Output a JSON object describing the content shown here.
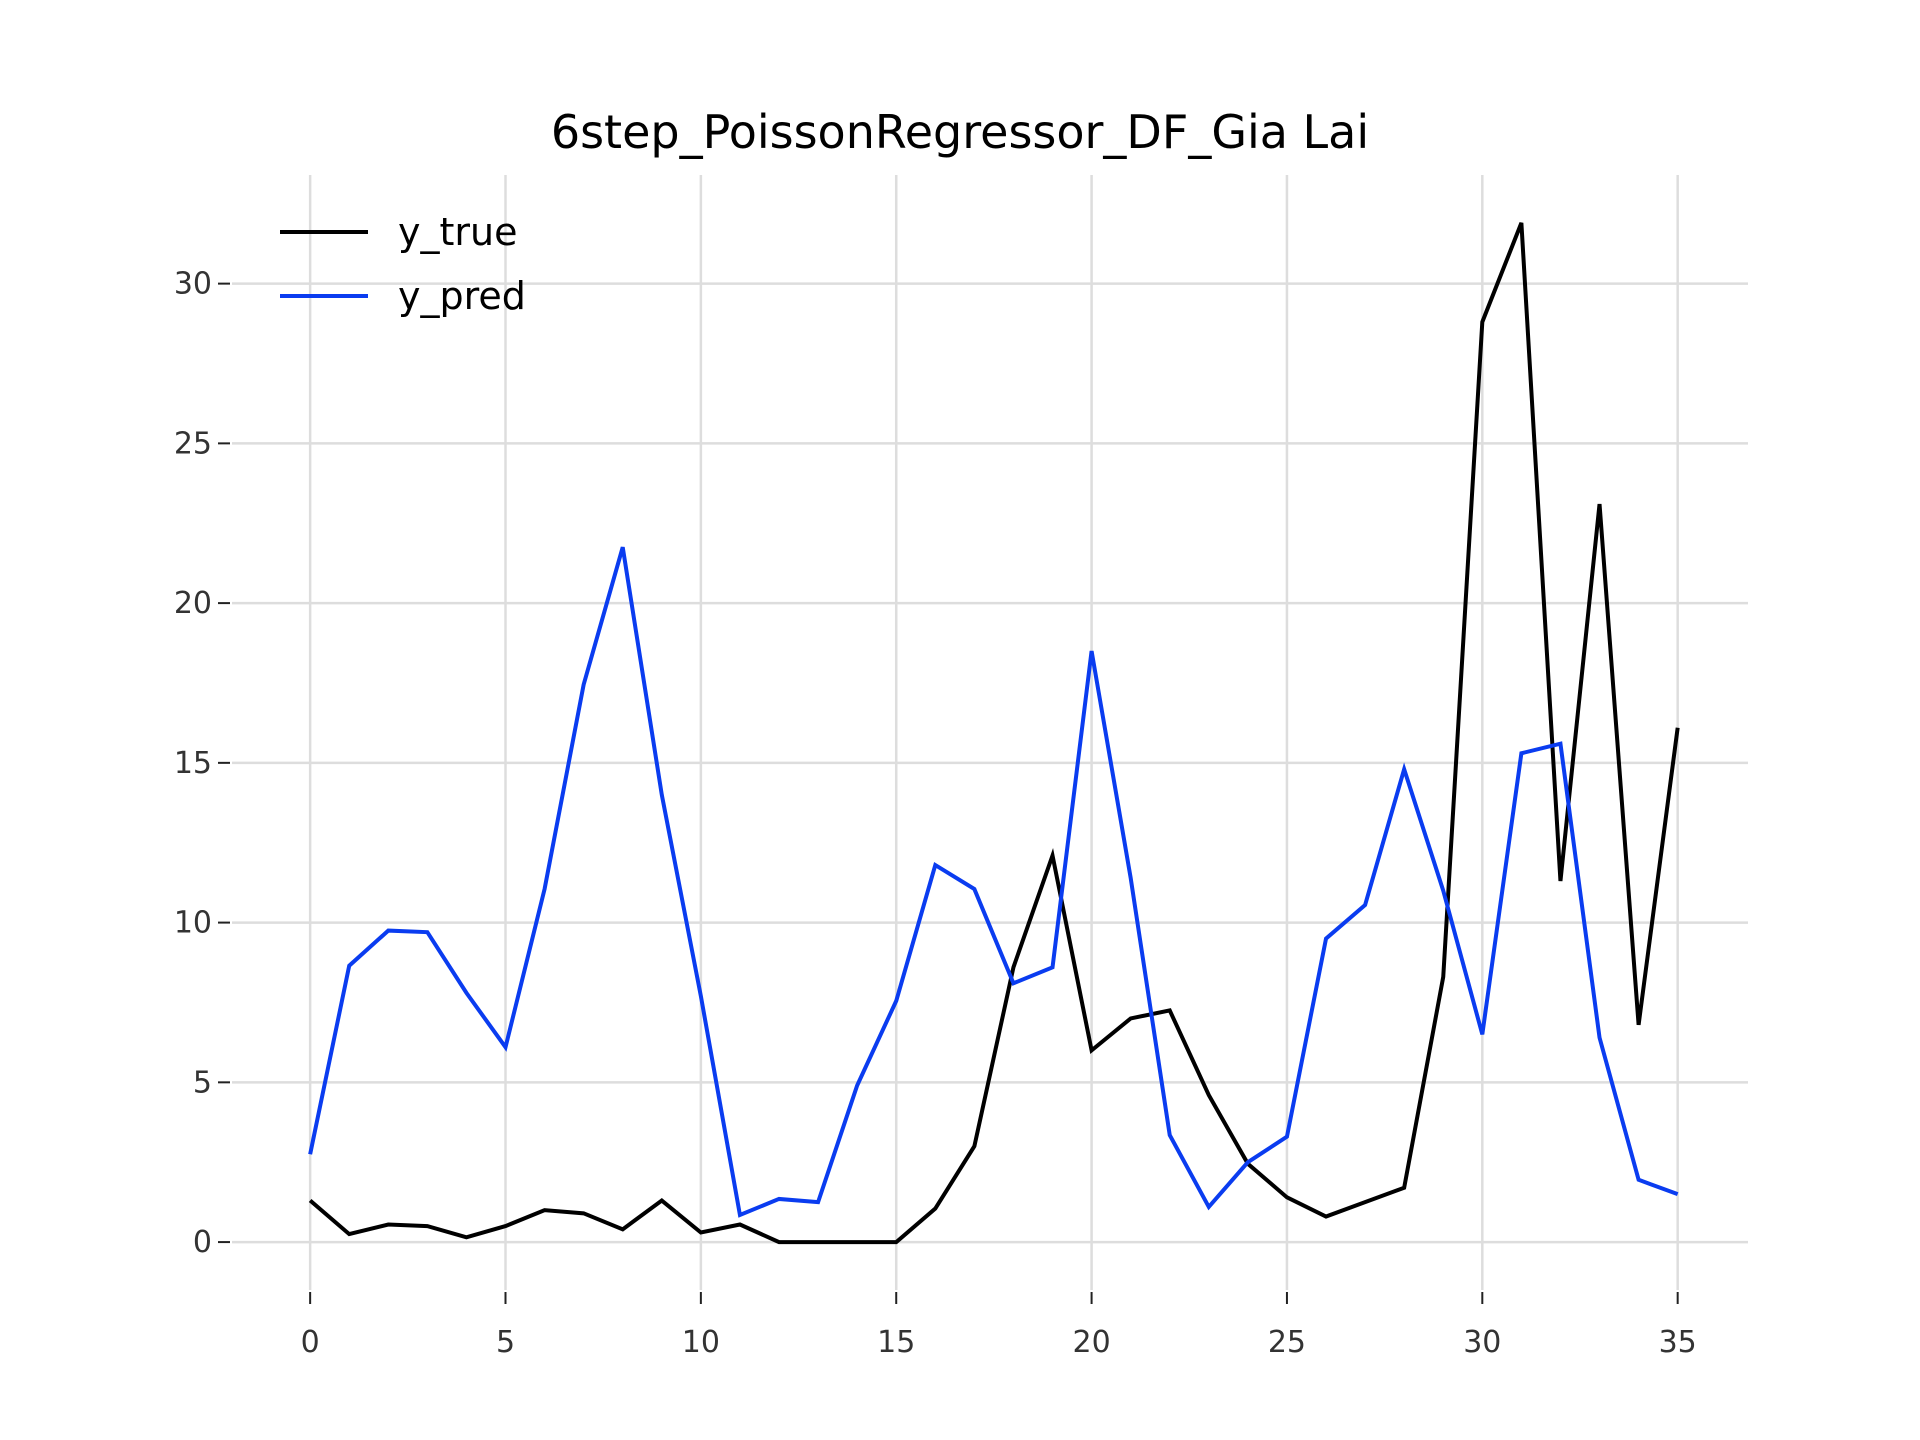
{
  "chart_data": {
    "type": "line",
    "title": "6step_PoissonRegressor_DF_Gia Lai",
    "xlabel": "",
    "ylabel": "",
    "x": [
      0,
      1,
      2,
      3,
      4,
      5,
      6,
      7,
      8,
      9,
      10,
      11,
      12,
      13,
      14,
      15,
      16,
      17,
      18,
      19,
      20,
      21,
      22,
      23,
      24,
      25,
      26,
      27,
      28,
      29,
      30,
      31,
      32,
      33,
      34,
      35
    ],
    "xlim": [
      -2,
      36.8
    ],
    "ylim": [
      -1.5,
      33.4
    ],
    "xticks": [
      0,
      5,
      10,
      15,
      20,
      25,
      30,
      35
    ],
    "yticks": [
      0,
      5,
      10,
      15,
      20,
      25,
      30
    ],
    "grid": true,
    "legend_position": "upper-left",
    "series": [
      {
        "name": "y_true",
        "color": "#000000",
        "values": [
          1.3,
          0.25,
          0.55,
          0.5,
          0.15,
          0.5,
          1.0,
          0.9,
          0.4,
          1.3,
          0.3,
          0.55,
          0.0,
          0.0,
          0.0,
          0.0,
          1.05,
          3.0,
          8.6,
          12.1,
          6.0,
          7.0,
          7.25,
          4.6,
          2.45,
          1.4,
          0.8,
          1.25,
          1.7,
          8.3,
          28.8,
          31.9,
          11.3,
          23.1,
          6.8,
          16.1
        ]
      },
      {
        "name": "y_pred",
        "color": "#0a3cf0",
        "values": [
          2.75,
          8.65,
          9.75,
          9.7,
          7.8,
          6.1,
          11.05,
          17.45,
          21.75,
          14.0,
          7.7,
          0.85,
          1.35,
          1.25,
          4.9,
          7.55,
          11.8,
          11.05,
          8.1,
          8.6,
          18.5,
          11.4,
          3.35,
          1.1,
          2.5,
          3.3,
          9.5,
          10.55,
          14.8,
          11.0,
          6.5,
          15.3,
          15.6,
          6.4,
          1.95,
          1.5
        ]
      }
    ]
  }
}
